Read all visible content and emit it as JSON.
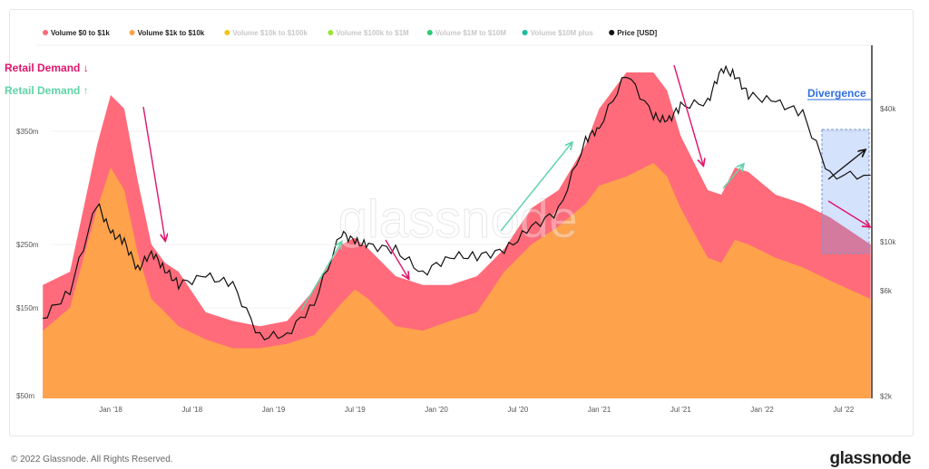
{
  "chart_data": {
    "type": "area",
    "legend_placement": "top",
    "legend": [
      {
        "label": "Volume $0 to $1k",
        "color": "#ff6b7a",
        "active": true
      },
      {
        "label": "Volume $1k to $10k",
        "color": "#ffa24c",
        "active": true
      },
      {
        "label": "Volume $10k to $100k",
        "color": "#f5c518",
        "active": false
      },
      {
        "label": "Volume $100k to $1M",
        "color": "#9be33a",
        "active": false
      },
      {
        "label": "Volume $1M to $10M",
        "color": "#2ecc71",
        "active": false
      },
      {
        "label": "Volume $10M plus",
        "color": "#1abc9c",
        "active": false
      },
      {
        "label": "Price [USD]",
        "color": "#111111",
        "active": true
      }
    ],
    "x_ticks": [
      "Jan '18",
      "Jul '18",
      "Jan '19",
      "Jul '19",
      "Jan '20",
      "Jul '20",
      "Jan '21",
      "Jul '21",
      "Jan '22",
      "Jul '22"
    ],
    "y_left_ticks": [
      {
        "label": "$350m",
        "value": 350
      },
      {
        "label": "$250m",
        "value": 250
      },
      {
        "label": "$150m",
        "value": 150
      },
      {
        "label": "$50m",
        "value": 50
      }
    ],
    "y_right_ticks": [
      {
        "label": "$40k",
        "value": 40000
      },
      {
        "label": "$10k",
        "value": 10000
      },
      {
        "label": "$6k",
        "value": 6000
      },
      {
        "label": "$2k",
        "value": 2000
      }
    ],
    "y_right_scale": "log",
    "dates": [
      "2017-08",
      "2017-10",
      "2017-12",
      "2018-01",
      "2018-02",
      "2018-03",
      "2018-04",
      "2018-05",
      "2018-06",
      "2018-08",
      "2018-10",
      "2018-12",
      "2019-02",
      "2019-04",
      "2019-06",
      "2019-07",
      "2019-08",
      "2019-10",
      "2019-12",
      "2020-02",
      "2020-04",
      "2020-06",
      "2020-08",
      "2020-10",
      "2020-12",
      "2021-01",
      "2021-03",
      "2021-05",
      "2021-06",
      "2021-07",
      "2021-09",
      "2021-10",
      "2021-11",
      "2021-12",
      "2022-02",
      "2022-04",
      "2022-06",
      "2022-09"
    ],
    "series": [
      {
        "name": "Volume $0 to $1k",
        "color": "#ff6b7a",
        "stacked_total": [
          186,
          207,
          338,
          382,
          370,
          306,
          250,
          221,
          207,
          145,
          135,
          129,
          135,
          179,
          250,
          256,
          243,
          200,
          186,
          186,
          200,
          243,
          282,
          298,
          338,
          370,
          402,
          402,
          386,
          346,
          298,
          294,
          318,
          314,
          294,
          286,
          274,
          250
        ]
      },
      {
        "name": "Volume $1k to $10k",
        "color": "#ffa24c",
        "values": [
          124,
          150,
          282,
          318,
          298,
          236,
          164,
          145,
          129,
          114,
          104,
          104,
          109,
          119,
          157,
          179,
          164,
          129,
          124,
          135,
          145,
          207,
          250,
          266,
          286,
          302,
          310,
          322,
          310,
          282,
          229,
          221,
          254,
          250,
          229,
          214,
          193,
          164
        ]
      },
      {
        "name": "Price [USD]",
        "color": "#111111",
        "values": [
          4500,
          6000,
          15000,
          11000,
          10000,
          7500,
          9000,
          7500,
          6400,
          7000,
          6400,
          3700,
          3800,
          5300,
          11000,
          10000,
          9600,
          9200,
          7200,
          8600,
          8600,
          9100,
          11600,
          13800,
          29000,
          33000,
          58000,
          37000,
          35000,
          41000,
          43000,
          61000,
          57000,
          46000,
          43000,
          38000,
          20000,
          20000
        ]
      }
    ],
    "annotations": {
      "retail_down": "Retail Demand ↓",
      "retail_up": "Retail Demand ↑",
      "divergence": "Divergence"
    },
    "colors": {
      "down": "#e0156b",
      "up": "#5fd3a8",
      "divergence": "#2f6fe0"
    }
  },
  "watermark": "glassnode",
  "footer": {
    "copyright": "© 2022 Glassnode. All Rights Reserved.",
    "logo": "glassnode"
  }
}
